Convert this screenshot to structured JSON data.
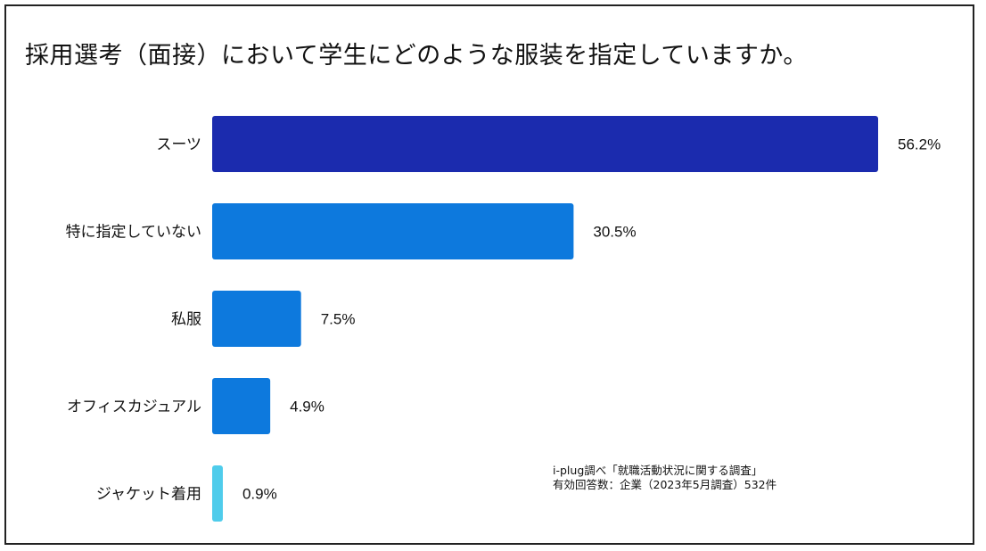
{
  "chart_data": {
    "type": "bar",
    "orientation": "horizontal",
    "title": "採用選考（面接）において学生にどのような服装を指定していますか。",
    "categories": [
      "スーツ",
      "特に指定していない",
      "私服",
      "オフィスカジュアル",
      "ジャケット着用"
    ],
    "values": [
      56.2,
      30.5,
      7.5,
      4.9,
      0.9
    ],
    "value_labels": [
      "56.2%",
      "30.5%",
      "7.5%",
      "4.9%",
      "0.9%"
    ],
    "colors": [
      "#1B2BAE",
      "#0D79DD",
      "#0D79DD",
      "#0D79DD",
      "#4FCCEB"
    ],
    "xlabel": "",
    "ylabel": "",
    "xlim": [
      0,
      56.2
    ],
    "grid": false,
    "legend": "none"
  },
  "source_note": {
    "line1": "i-plug調べ「就職活動状況に関する調査」",
    "line2": "有効回答数：企業（2023年5月調査）532件"
  }
}
